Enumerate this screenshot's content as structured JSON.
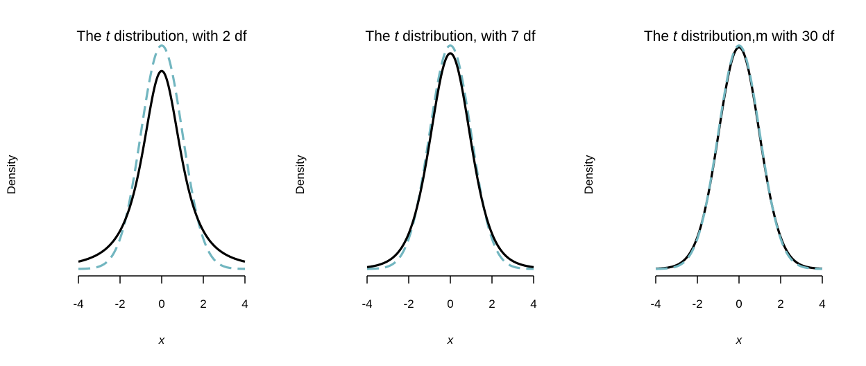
{
  "chart_data": [
    {
      "type": "line",
      "title": {
        "prefix": "The ",
        "var": "t",
        "suffix": " distribution, with 2 df"
      },
      "xlabel": "x",
      "ylabel": "Density",
      "xlim": [
        -4,
        4
      ],
      "ylim": [
        0,
        0.4
      ],
      "xticks": [
        "-4",
        "-2",
        "0",
        "2",
        "4"
      ],
      "df": 2,
      "series": [
        {
          "kind": "t density",
          "color": "#000000",
          "dash": "solid",
          "x": [
            -4,
            -3,
            -2,
            -1.5,
            -1,
            -0.5,
            0,
            0.5,
            1,
            1.5,
            2,
            3,
            4
          ],
          "y": [
            0.0131,
            0.0274,
            0.068,
            0.1125,
            0.1925,
            0.2962,
            0.3536,
            0.2962,
            0.1925,
            0.1125,
            0.068,
            0.0274,
            0.0131
          ]
        },
        {
          "kind": "normal density",
          "color": "#72B6C0",
          "dash": "dashed",
          "x": [
            -4,
            -3,
            -2,
            -1.5,
            -1,
            -0.5,
            0,
            0.5,
            1,
            1.5,
            2,
            3,
            4
          ],
          "y": [
            0.0001,
            0.0044,
            0.054,
            0.1295,
            0.242,
            0.3521,
            0.3989,
            0.3521,
            0.242,
            0.1295,
            0.054,
            0.0044,
            0.0001
          ]
        }
      ]
    },
    {
      "type": "line",
      "title": {
        "prefix": "The ",
        "var": "t",
        "suffix": " distribution, with 7 df"
      },
      "xlabel": "x",
      "ylabel": "Density",
      "xlim": [
        -4,
        4
      ],
      "ylim": [
        0,
        0.4
      ],
      "xticks": [
        "-4",
        "-2",
        "0",
        "2",
        "4"
      ],
      "df": 7,
      "series": [
        {
          "kind": "t density",
          "color": "#000000",
          "dash": "solid",
          "x": [
            -4,
            -3,
            -2,
            -1.5,
            -1,
            -0.5,
            0,
            0.5,
            1,
            1.5,
            2,
            3,
            4
          ],
          "y": [
            0.0034,
            0.0145,
            0.0646,
            0.1297,
            0.2288,
            0.3387,
            0.3796,
            0.3387,
            0.2288,
            0.1297,
            0.0646,
            0.0145,
            0.0034
          ]
        },
        {
          "kind": "normal density",
          "color": "#72B6C0",
          "dash": "dashed",
          "x": [
            -4,
            -3,
            -2,
            -1.5,
            -1,
            -0.5,
            0,
            0.5,
            1,
            1.5,
            2,
            3,
            4
          ],
          "y": [
            0.0001,
            0.0044,
            0.054,
            0.1295,
            0.242,
            0.3521,
            0.3989,
            0.3521,
            0.242,
            0.1295,
            0.054,
            0.0044,
            0.0001
          ]
        }
      ]
    },
    {
      "type": "line",
      "title": {
        "prefix": "The ",
        "var": "t",
        "suffix": " distribution,m with 30 df"
      },
      "xlabel": "x",
      "ylabel": "Density",
      "xlim": [
        -4,
        4
      ],
      "ylim": [
        0,
        0.4
      ],
      "xticks": [
        "-4",
        "-2",
        "0",
        "2",
        "4"
      ],
      "df": 30,
      "series": [
        {
          "kind": "t density",
          "color": "#000000",
          "dash": "solid",
          "x": [
            -4,
            -3,
            -2,
            -1.5,
            -1,
            -0.5,
            0,
            0.5,
            1,
            1.5,
            2,
            3,
            4
          ],
          "y": [
            0.0004,
            0.0066,
            0.0557,
            0.1289,
            0.2378,
            0.3488,
            0.3956,
            0.3488,
            0.2378,
            0.1289,
            0.0557,
            0.0066,
            0.0004
          ]
        },
        {
          "kind": "normal density",
          "color": "#72B6C0",
          "dash": "dashed",
          "x": [
            -4,
            -3,
            -2,
            -1.5,
            -1,
            -0.5,
            0,
            0.5,
            1,
            1.5,
            2,
            3,
            4
          ],
          "y": [
            0.0001,
            0.0044,
            0.054,
            0.1295,
            0.242,
            0.3521,
            0.3989,
            0.3521,
            0.242,
            0.1295,
            0.054,
            0.0044,
            0.0001
          ]
        }
      ]
    }
  ]
}
